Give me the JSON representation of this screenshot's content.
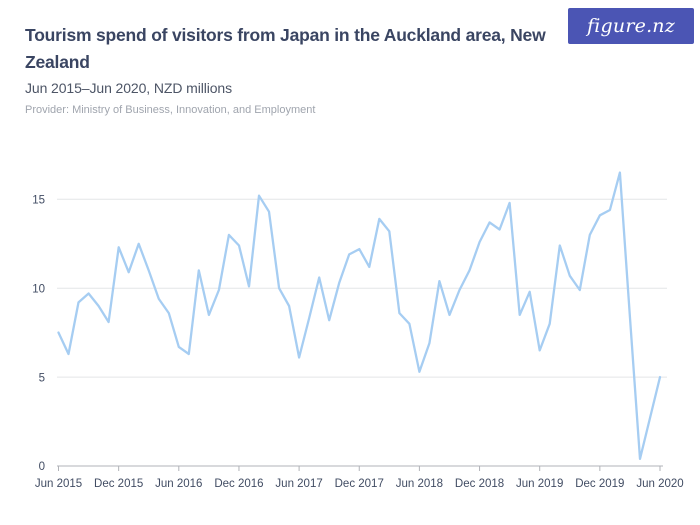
{
  "header": {
    "title": "Tourism spend of visitors from Japan in the Auckland area, New Zealand",
    "subtitle": "Jun 2015–Jun 2020, NZD millions",
    "provider": "Provider: Ministry of Business, Innovation, and Employment",
    "logo_text": "figure.nz"
  },
  "colors": {
    "title": "#3a4562",
    "subtitle": "#4d5566",
    "provider": "#a0a5ae",
    "logo_bg": "#4b55b4",
    "line": "#a6cdf2",
    "grid": "#e4e5e7",
    "axis": "#b1b3b8",
    "axis_text": "#414c63"
  },
  "chart_data": {
    "type": "line",
    "title": "Tourism spend of visitors from Japan in the Auckland area, New Zealand",
    "subtitle": "Jun 2015-Jun 2020, NZD millions",
    "xlabel": "",
    "ylabel": "NZD millions",
    "ylim": [
      0,
      17
    ],
    "yticks": [
      0,
      5,
      10,
      15
    ],
    "grid": "horizontal",
    "legend": "none",
    "x": [
      "Jun 2015",
      "Jul 2015",
      "Aug 2015",
      "Sep 2015",
      "Oct 2015",
      "Nov 2015",
      "Dec 2015",
      "Jan 2016",
      "Feb 2016",
      "Mar 2016",
      "Apr 2016",
      "May 2016",
      "Jun 2016",
      "Jul 2016",
      "Aug 2016",
      "Sep 2016",
      "Oct 2016",
      "Nov 2016",
      "Dec 2016",
      "Jan 2017",
      "Feb 2017",
      "Mar 2017",
      "Apr 2017",
      "May 2017",
      "Jun 2017",
      "Jul 2017",
      "Aug 2017",
      "Sep 2017",
      "Oct 2017",
      "Nov 2017",
      "Dec 2017",
      "Jan 2018",
      "Feb 2018",
      "Mar 2018",
      "Apr 2018",
      "May 2018",
      "Jun 2018",
      "Jul 2018",
      "Aug 2018",
      "Sep 2018",
      "Oct 2018",
      "Nov 2018",
      "Dec 2018",
      "Jan 2019",
      "Feb 2019",
      "Mar 2019",
      "Apr 2019",
      "May 2019",
      "Jun 2019",
      "Jul 2019",
      "Aug 2019",
      "Sep 2019",
      "Oct 2019",
      "Nov 2019",
      "Dec 2019",
      "Jan 2020",
      "Feb 2020",
      "Mar 2020",
      "Apr 2020",
      "May 2020",
      "Jun 2020"
    ],
    "series": [
      {
        "name": "Tourism spend (NZD millions)",
        "values": [
          7.5,
          6.3,
          9.2,
          9.7,
          9.0,
          8.1,
          12.3,
          10.9,
          12.5,
          11.0,
          9.4,
          8.6,
          6.7,
          6.3,
          11.0,
          8.5,
          9.9,
          13.0,
          12.4,
          10.1,
          15.2,
          14.3,
          10.0,
          9.0,
          6.1,
          8.3,
          10.6,
          8.2,
          10.3,
          11.9,
          12.2,
          11.2,
          13.9,
          13.2,
          8.6,
          8.0,
          5.3,
          6.9,
          10.4,
          8.5,
          9.9,
          11.0,
          12.6,
          13.7,
          13.3,
          14.8,
          8.5,
          9.8,
          6.5,
          8.0,
          12.4,
          10.7,
          9.9,
          13.0,
          14.1,
          14.4,
          16.5,
          8.4,
          0.4,
          2.7,
          5.0
        ]
      }
    ],
    "xtick_labels": [
      "Jun 2015",
      "Dec 2015",
      "Jun 2016",
      "Dec 2016",
      "Jun 2017",
      "Dec 2017",
      "Jun 2018",
      "Dec 2018",
      "Jun 2019",
      "Dec 2019",
      "Jun 2020"
    ]
  }
}
